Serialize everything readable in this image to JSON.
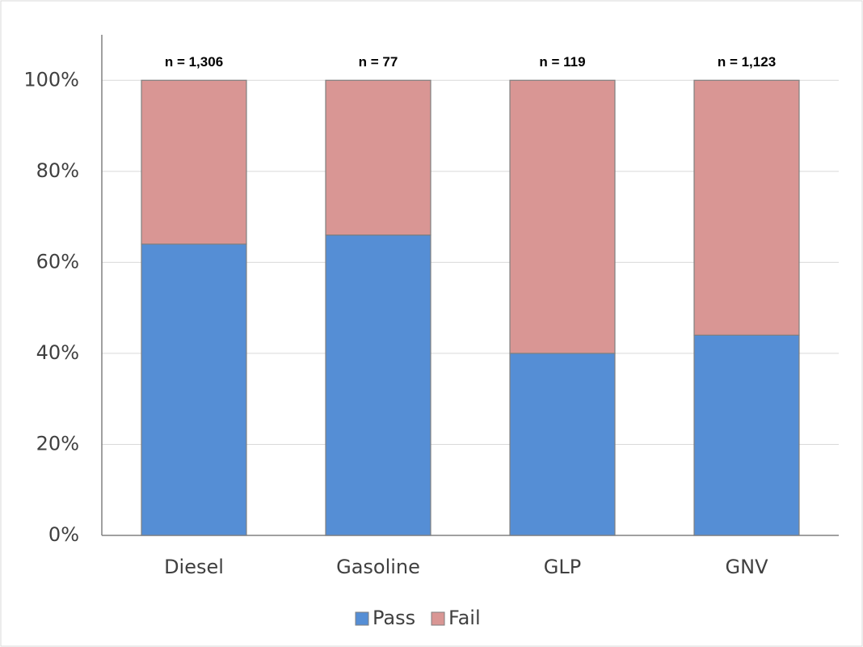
{
  "chart_data": {
    "type": "stacked_bar",
    "categories": [
      "Diesel",
      "Gasoline",
      "GLP",
      "GNV"
    ],
    "series": [
      {
        "name": "Pass",
        "color": "#558ed5",
        "values": [
          64,
          66,
          40,
          44
        ]
      },
      {
        "name": "Fail",
        "color": "#d99694",
        "values": [
          36,
          34,
          60,
          56
        ]
      }
    ],
    "annotations": [
      "n = 1,306",
      "n = 77",
      "n = 119",
      "n = 1,123"
    ],
    "ylim": [
      0,
      110
    ],
    "yticks": [
      {
        "value": 0,
        "label": "0%"
      },
      {
        "value": 20,
        "label": "20%"
      },
      {
        "value": 40,
        "label": "40%"
      },
      {
        "value": 60,
        "label": "60%"
      },
      {
        "value": 80,
        "label": "80%"
      },
      {
        "value": 100,
        "label": "100%"
      }
    ],
    "grid": true,
    "legend": "bottom"
  }
}
